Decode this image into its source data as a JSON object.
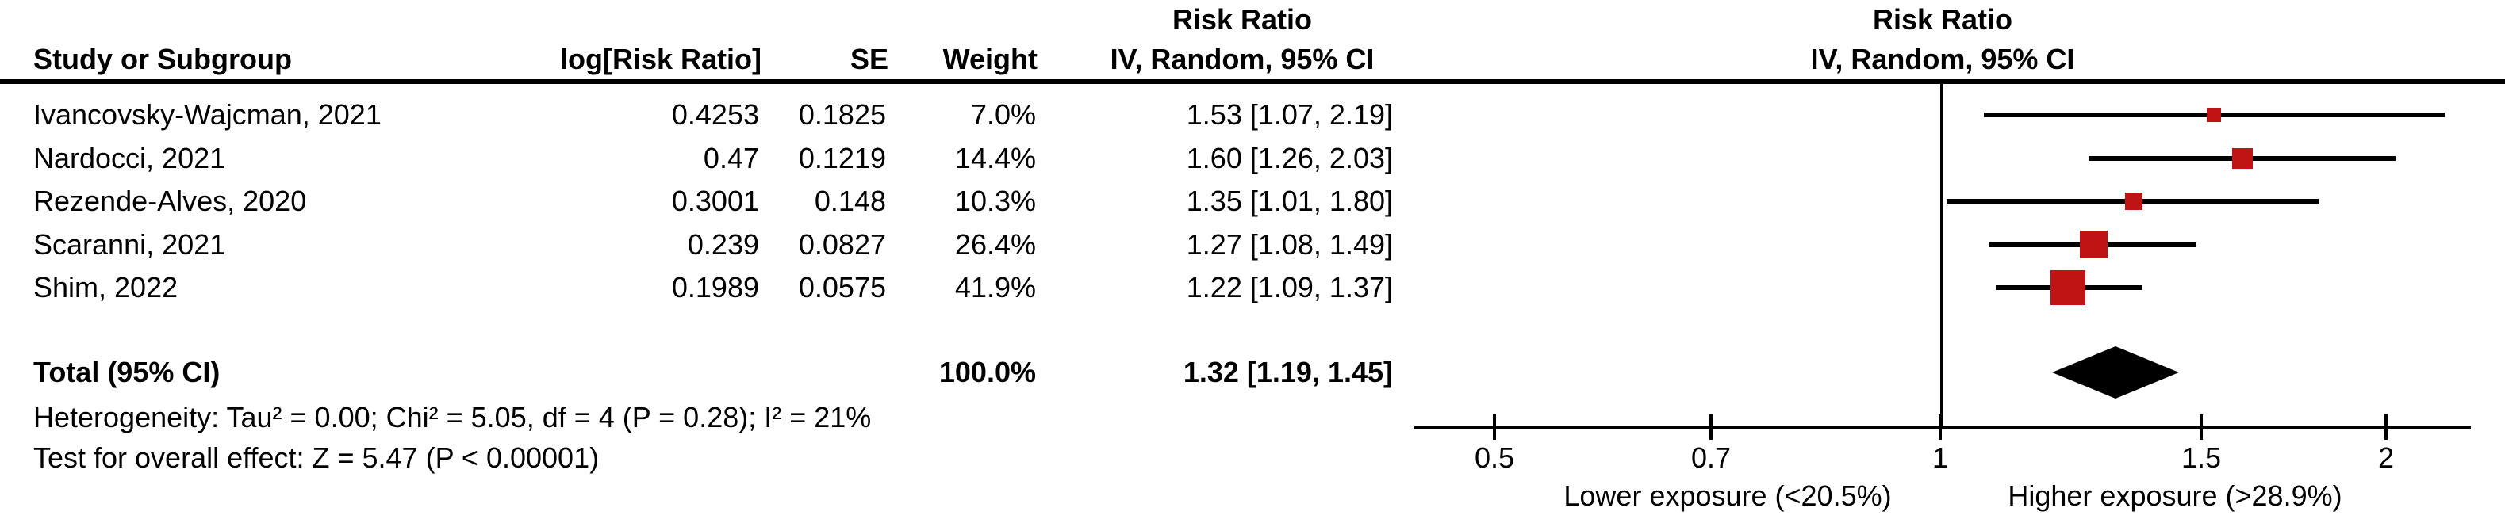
{
  "table": {
    "headers": {
      "study": "Study or Subgroup",
      "log_rr": "log[Risk Ratio]",
      "se": "SE",
      "weight": "Weight",
      "effect_measure": "Risk Ratio",
      "effect_model": "IV, Random, 95% CI"
    }
  },
  "plot_header": {
    "effect_measure": "Risk Ratio",
    "effect_model": "IV, Random, 95% CI"
  },
  "chart_data": {
    "type": "forest",
    "effect_measure": "Risk Ratio",
    "model": "IV, Random, 95% CI",
    "studies": [
      {
        "name": "Ivancovsky-Wajcman, 2021",
        "log_label": "0.4253",
        "log_risk_ratio": 0.4253,
        "se_label": "0.1825",
        "se": 0.1825,
        "weight_label": "7.0%",
        "weight_pct": 7.0,
        "rr": 1.53,
        "ci_low": 1.07,
        "ci_high": 2.19,
        "ci_label": "1.53 [1.07, 2.19]"
      },
      {
        "name": "Nardocci, 2021",
        "log_label": "0.47",
        "log_risk_ratio": 0.47,
        "se_label": "0.1219",
        "se": 0.1219,
        "weight_label": "14.4%",
        "weight_pct": 14.4,
        "rr": 1.6,
        "ci_low": 1.26,
        "ci_high": 2.03,
        "ci_label": "1.60 [1.26, 2.03]"
      },
      {
        "name": "Rezende-Alves, 2020",
        "log_label": "0.3001",
        "log_risk_ratio": 0.3001,
        "se_label": "0.148",
        "se": 0.148,
        "weight_label": "10.3%",
        "weight_pct": 10.3,
        "rr": 1.35,
        "ci_low": 1.01,
        "ci_high": 1.8,
        "ci_label": "1.35 [1.01, 1.80]"
      },
      {
        "name": "Scaranni, 2021",
        "log_label": "0.239",
        "log_risk_ratio": 0.239,
        "se_label": "0.0827",
        "se": 0.0827,
        "weight_label": "26.4%",
        "weight_pct": 26.4,
        "rr": 1.27,
        "ci_low": 1.08,
        "ci_high": 1.49,
        "ci_label": "1.27 [1.08, 1.49]"
      },
      {
        "name": "Shim, 2022",
        "log_label": "0.1989",
        "log_risk_ratio": 0.1989,
        "se_label": "0.0575",
        "se": 0.0575,
        "weight_label": "41.9%",
        "weight_pct": 41.9,
        "rr": 1.22,
        "ci_low": 1.09,
        "ci_high": 1.37,
        "ci_label": "1.22 [1.09, 1.37]"
      }
    ],
    "total": {
      "label": "Total (95% CI)",
      "weight_label": "100.0%",
      "rr": 1.32,
      "ci_low": 1.19,
      "ci_high": 1.45,
      "ci_label": "1.32 [1.19, 1.45]"
    },
    "heterogeneity": "Heterogeneity: Tau² = 0.00; Chi² = 5.05, df = 4 (P = 0.28); I² = 21%",
    "overall_effect": "Test for overall effect: Z = 5.47 (P < 0.00001)",
    "axis": {
      "scale": "log",
      "ticks": [
        0.5,
        0.7,
        1,
        1.5,
        2
      ],
      "tick_labels": [
        "0.5",
        "0.7",
        "1",
        "1.5",
        "2"
      ],
      "xlim": [
        0.44,
        2.28
      ],
      "null_value": 1,
      "left_label": "Lower exposure (<20.5%)",
      "right_label": "Higher exposure (>28.9%)"
    },
    "colors": {
      "study_marker": "#BE1414",
      "diamond": "#000000",
      "line": "#000000"
    }
  }
}
